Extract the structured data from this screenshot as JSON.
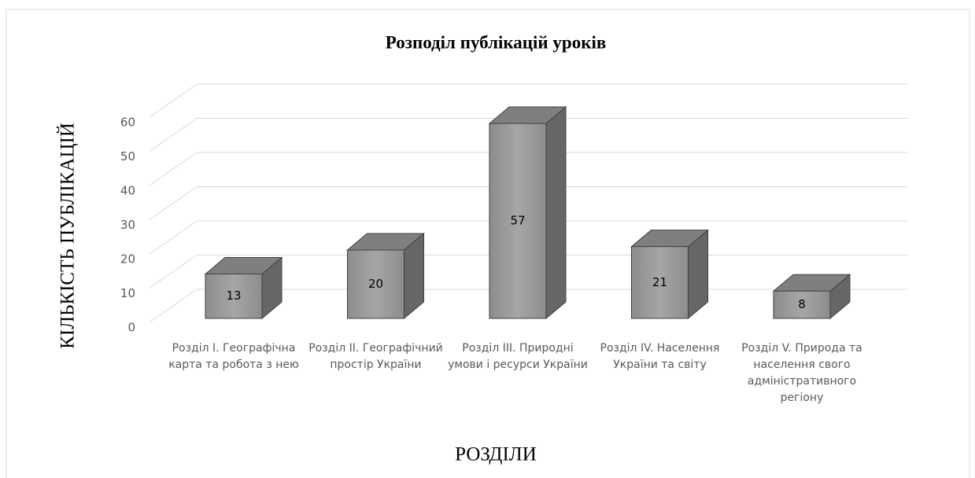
{
  "chart_data": {
    "type": "bar3d",
    "title": "Розподіл публікацій уроків",
    "xlabel": "РОЗДІЛИ",
    "ylabel": "КІЛЬКІСТЬ ПУБЛІКАЦІЙ",
    "categories": [
      "Розділ I. Географічна карта та робота з нею",
      "Розділ II. Географічний простір України",
      "Розділ III. Природні умови і ресурси України",
      "Розділ IV. Населення України та світу",
      "Розділ V. Природа та населення свого адміністративного регіону"
    ],
    "values": [
      13,
      20,
      57,
      21,
      8
    ],
    "color": "#a6a6a6",
    "ylim": [
      0,
      60
    ],
    "yticks": [
      0,
      10,
      20,
      30,
      40,
      50,
      60
    ],
    "grid": true
  }
}
